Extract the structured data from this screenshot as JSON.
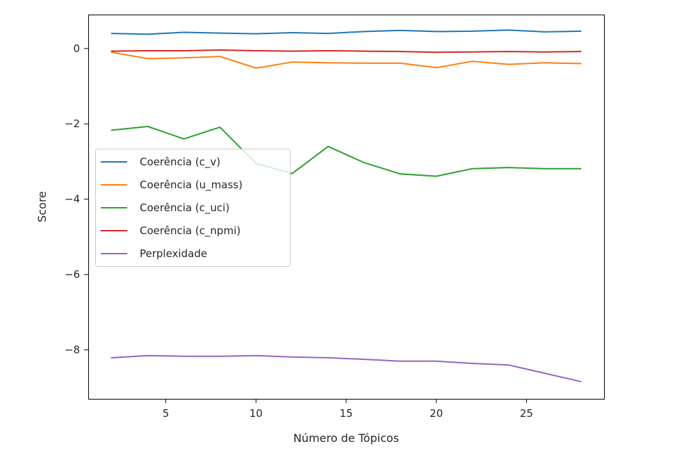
{
  "chart_data": {
    "type": "line",
    "title": "",
    "xlabel": "Número de Tópicos",
    "ylabel": "Score",
    "x": [
      2,
      4,
      6,
      8,
      10,
      12,
      14,
      16,
      18,
      20,
      22,
      24,
      26,
      28
    ],
    "xlim": [
      0.7,
      29.3
    ],
    "ylim": [
      -9.3,
      0.9
    ],
    "xticks": [
      5,
      10,
      15,
      20,
      25
    ],
    "yticks": [
      0,
      -2,
      -4,
      -6,
      -8
    ],
    "xtick_labels": [
      "5",
      "10",
      "15",
      "20",
      "25"
    ],
    "ytick_labels": [
      "0",
      "−2",
      "−4",
      "−6",
      "−8"
    ],
    "grid": false,
    "legend_position": "center-left",
    "series": [
      {
        "name": "Coerência (c_v)",
        "color": "#1f77b4",
        "values": [
          0.4,
          0.38,
          0.43,
          0.41,
          0.39,
          0.42,
          0.4,
          0.45,
          0.48,
          0.45,
          0.46,
          0.49,
          0.44,
          0.46
        ]
      },
      {
        "name": "Coerência (u_mass)",
        "color": "#ff7f0e",
        "values": [
          -0.1,
          -0.27,
          -0.25,
          -0.21,
          -0.52,
          -0.36,
          -0.38,
          -0.39,
          -0.39,
          -0.51,
          -0.34,
          -0.42,
          -0.38,
          -0.4
        ]
      },
      {
        "name": "Coerência (c_uci)",
        "color": "#2ca02c",
        "values": [
          -2.17,
          -2.07,
          -2.4,
          -2.09,
          -3.05,
          -3.32,
          -2.6,
          -3.03,
          -3.33,
          -3.39,
          -3.19,
          -3.16,
          -3.19,
          -3.19
        ]
      },
      {
        "name": "Coerência (c_npmi)",
        "color": "#d62728",
        "values": [
          -0.07,
          -0.06,
          -0.06,
          -0.04,
          -0.06,
          -0.07,
          -0.06,
          -0.07,
          -0.08,
          -0.1,
          -0.09,
          -0.08,
          -0.09,
          -0.08
        ]
      },
      {
        "name": "Perplexidade",
        "color": "#9467bd",
        "values": [
          -8.21,
          -8.15,
          -8.17,
          -8.17,
          -8.15,
          -8.19,
          -8.21,
          -8.25,
          -8.3,
          -8.3,
          -8.36,
          -8.4,
          -8.62,
          -8.84
        ]
      }
    ]
  }
}
